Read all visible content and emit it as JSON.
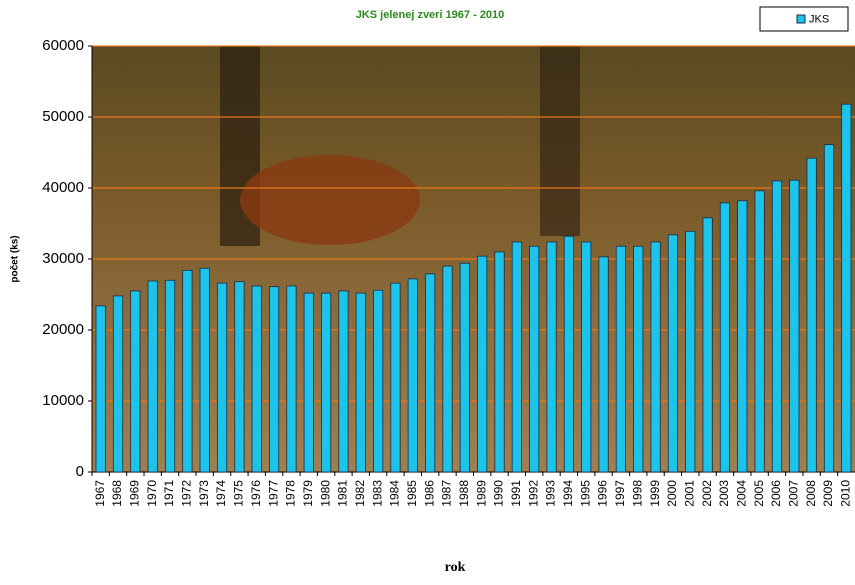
{
  "chart_data": {
    "type": "bar",
    "title": "JKS jelenej zveri 1967 - 2010",
    "x_label": "rok",
    "y_label": "počet (ks)",
    "categories": [
      "1967",
      "1968",
      "1969",
      "1970",
      "1971",
      "1972",
      "1973",
      "1974",
      "1975",
      "1976",
      "1977",
      "1978",
      "1979",
      "1980",
      "1981",
      "1982",
      "1983",
      "1984",
      "1985",
      "1986",
      "1987",
      "1988",
      "1989",
      "1990",
      "1991",
      "1992",
      "1993",
      "1994",
      "1995",
      "1996",
      "1997",
      "1998",
      "1999",
      "2000",
      "2001",
      "2002",
      "2003",
      "2004",
      "2005",
      "2006",
      "2007",
      "2008",
      "2009",
      "2010"
    ],
    "series": [
      {
        "name": "JKS",
        "color": "#1cc4ec",
        "values": [
          23400,
          24800,
          25500,
          26900,
          27000,
          28400,
          28700,
          26600,
          26800,
          26200,
          26100,
          26200,
          25200,
          25200,
          25500,
          25200,
          25600,
          26600,
          27200,
          27900,
          29000,
          29400,
          30400,
          31000,
          32400,
          31800,
          32400,
          33200,
          32400,
          30300,
          31800,
          31800,
          32400,
          33400,
          33900,
          35800,
          37900,
          38200,
          39600,
          41000,
          41100,
          44200,
          46100,
          51800
        ]
      }
    ],
    "ylim": [
      0,
      60000
    ],
    "yticks": [
      0,
      10000,
      20000,
      30000,
      40000,
      50000,
      60000
    ],
    "grid": true,
    "grid_color": "#e8761c",
    "legend": "top-right"
  }
}
